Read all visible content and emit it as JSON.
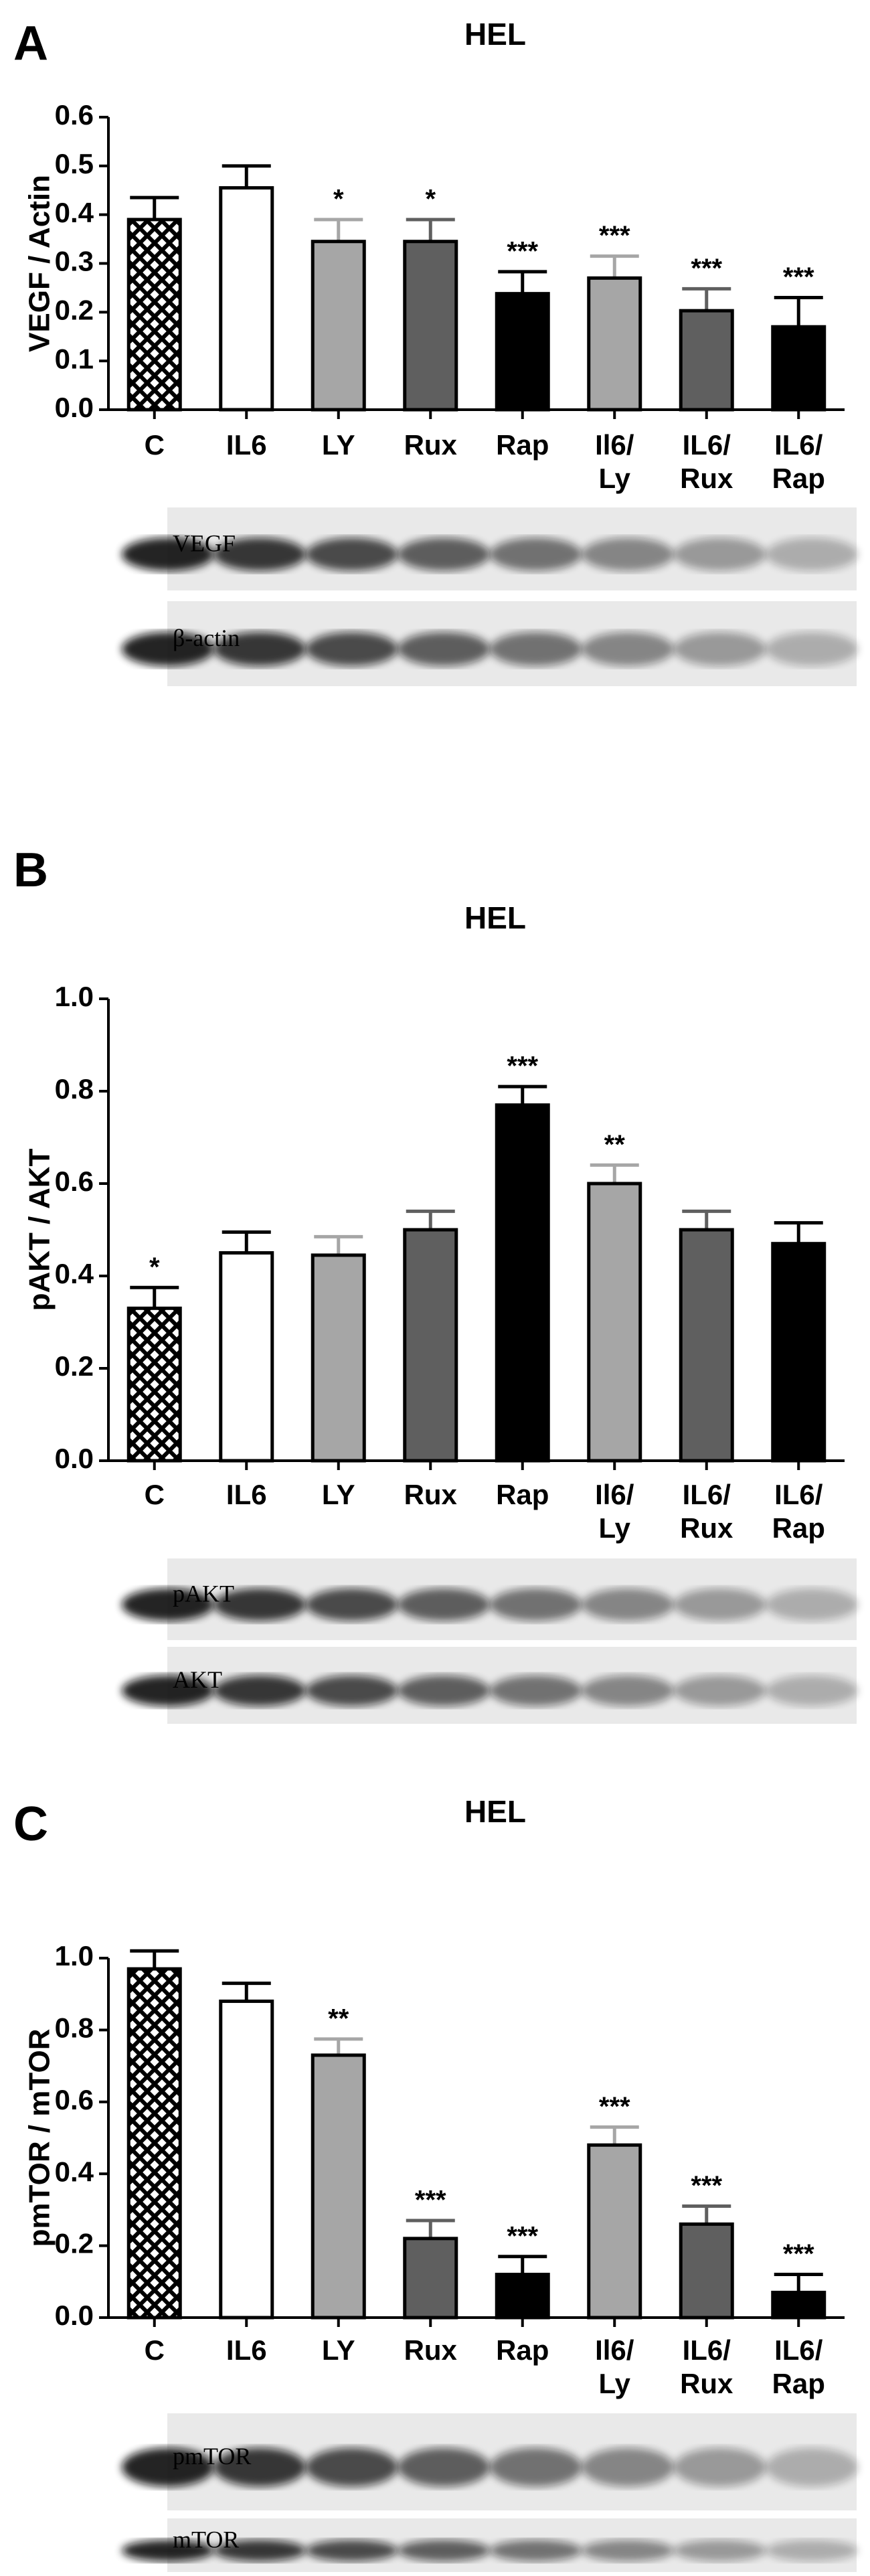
{
  "chart_data": [
    {
      "type": "bar",
      "panel": "A",
      "title": "HEL",
      "y_label": "VEGF / Actin",
      "categories": [
        "C",
        "IL6",
        "LY",
        "Rux",
        "Rap",
        "Il6/\nLy",
        "IL6/\nRux",
        "IL6/\nRap"
      ],
      "values": [
        0.39,
        0.455,
        0.345,
        0.345,
        0.238,
        0.27,
        0.203,
        0.17
      ],
      "errors": [
        0.045,
        0.045,
        0.045,
        0.045,
        0.045,
        0.045,
        0.045,
        0.06
      ],
      "annotations": [
        null,
        null,
        "*",
        "*",
        "***",
        "***",
        "***",
        "***"
      ],
      "colors": [
        "pattern",
        "#ffffff",
        "#a6a6a6",
        "#5f5f5f",
        "#000000",
        "#a6a6a6",
        "#5f5f5f",
        "#000000"
      ],
      "ylim": [
        0,
        0.6
      ],
      "yticks": [
        {
          "value": 0,
          "label": "0.0"
        },
        0.1,
        0.2,
        0.3,
        0.4,
        0.5,
        0.6
      ],
      "blot_labels": [
        "VEGF",
        "β-actin"
      ]
    },
    {
      "type": "bar",
      "panel": "B",
      "title": "HEL",
      "y_label": "pAKT / AKT",
      "categories": [
        "C",
        "IL6",
        "LY",
        "Rux",
        "Rap",
        "Il6/\nLy",
        "IL6/\nRux",
        "IL6/\nRap"
      ],
      "values": [
        0.33,
        0.45,
        0.445,
        0.5,
        0.77,
        0.6,
        0.5,
        0.47
      ],
      "errors": [
        0.045,
        0.045,
        0.04,
        0.04,
        0.04,
        0.04,
        0.04,
        0.045
      ],
      "annotations": [
        "*",
        null,
        null,
        null,
        "***",
        "**",
        null,
        null
      ],
      "colors": [
        "pattern",
        "#ffffff",
        "#a6a6a6",
        "#5f5f5f",
        "#000000",
        "#a6a6a6",
        "#5f5f5f",
        "#000000"
      ],
      "ylim": [
        0,
        1.0
      ],
      "yticks": [
        {
          "value": 0,
          "label": "0.0"
        },
        0.2,
        0.4,
        0.6,
        0.8,
        {
          "value": 1,
          "label": "1.0"
        }
      ],
      "blot_labels": [
        "pAKT",
        "AKT"
      ]
    },
    {
      "type": "bar",
      "panel": "C",
      "title": "HEL",
      "y_label": "pmTOR / mTOR",
      "categories": [
        "C",
        "IL6",
        "LY",
        "Rux",
        "Rap",
        "Il6/\nLy",
        "IL6/\nRux",
        "IL6/\nRap"
      ],
      "values": [
        0.97,
        0.88,
        0.73,
        0.22,
        0.12,
        0.48,
        0.26,
        0.07
      ],
      "errors": [
        0.05,
        0.05,
        0.045,
        0.05,
        0.05,
        0.05,
        0.05,
        0.05
      ],
      "annotations": [
        null,
        null,
        "**",
        "***",
        "***",
        "***",
        "***",
        "***"
      ],
      "colors": [
        "pattern",
        "#ffffff",
        "#a6a6a6",
        "#5f5f5f",
        "#000000",
        "#a6a6a6",
        "#5f5f5f",
        "#000000"
      ],
      "ylim": [
        0,
        1.0
      ],
      "yticks": [
        {
          "value": 0,
          "label": "0.0"
        },
        0.2,
        0.4,
        0.6,
        0.8,
        {
          "value": 1,
          "label": "1.0"
        }
      ],
      "blot_labels": [
        "pmTOR",
        "mTOR"
      ]
    }
  ]
}
